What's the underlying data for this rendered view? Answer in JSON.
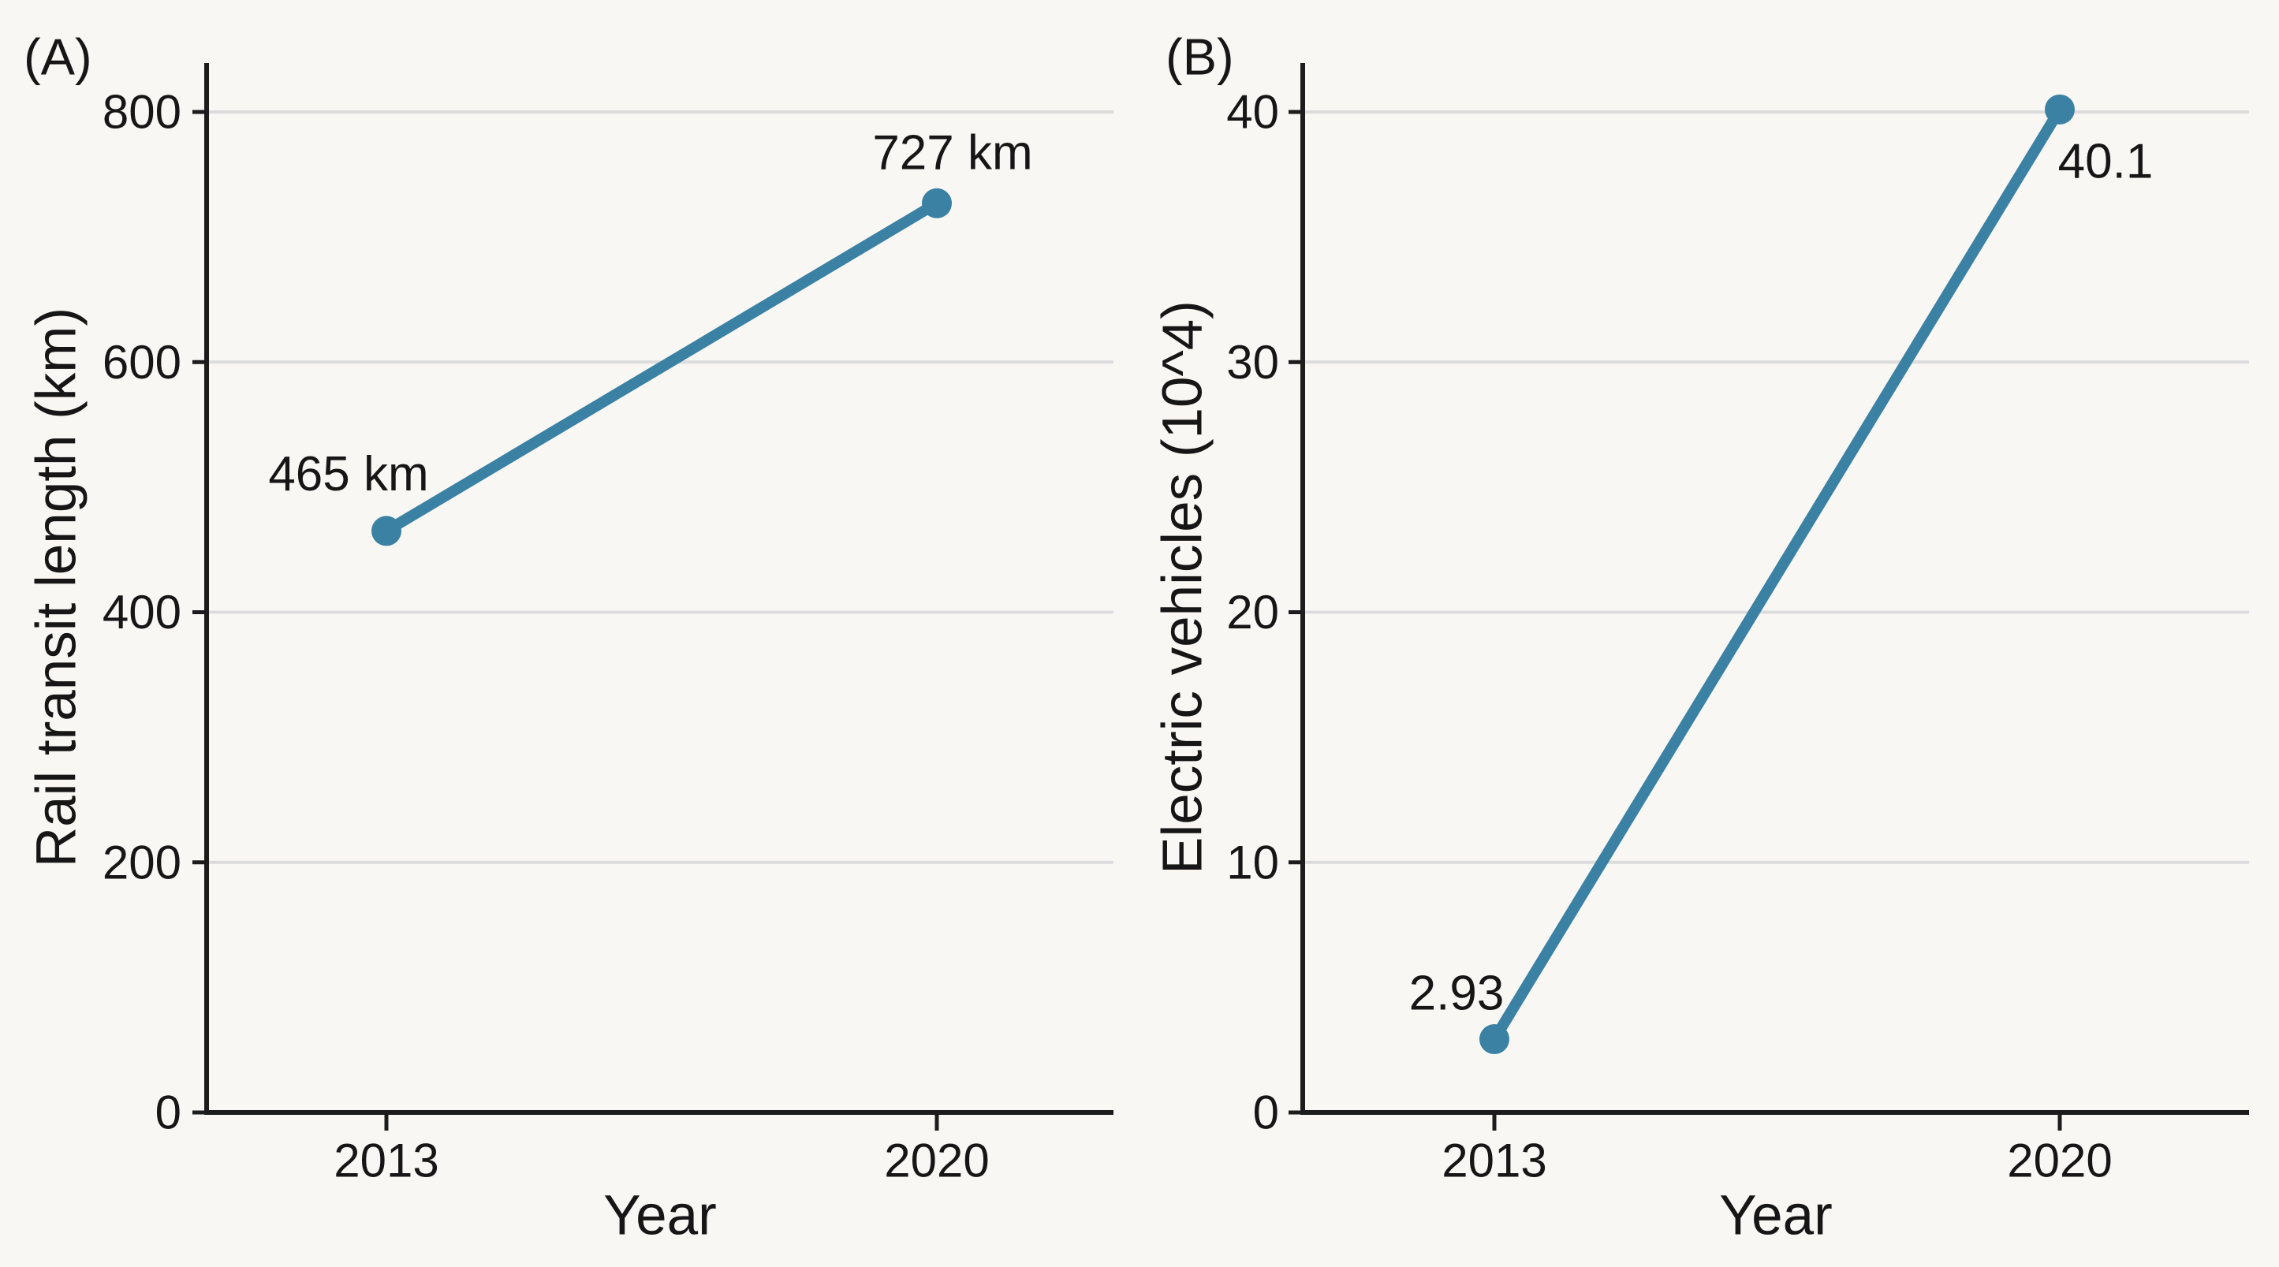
{
  "figure": {
    "background": "#f8f7f4",
    "text_color": "#161616",
    "grid_color": "#dcdcdc",
    "axis_color": "#1c1c1c",
    "accent_color": "#3b81a4"
  },
  "chart_data": [
    {
      "id": "A",
      "panel_label": "(A)",
      "type": "line",
      "x": [
        "2013",
        "2020"
      ],
      "values": [
        465,
        727
      ],
      "point_labels": [
        "465 km",
        "727 km"
      ],
      "xlabel": "Year",
      "ylabel": "Rail transit length (km)",
      "ylim": [
        0,
        800
      ],
      "yticks": [
        0,
        200,
        400,
        600,
        800
      ],
      "grid": true,
      "legend": "none",
      "line_color": "#3b81a4"
    },
    {
      "id": "B",
      "panel_label": "(B)",
      "type": "line",
      "x": [
        "2013",
        "2020"
      ],
      "values": [
        2.93,
        40.1
      ],
      "point_labels": [
        "2.93",
        "40.1"
      ],
      "xlabel": "Year",
      "ylabel": "Electric vehicles (10^4)",
      "ylim": [
        0,
        40
      ],
      "yticks": [
        0,
        10,
        20,
        30,
        40
      ],
      "grid": true,
      "legend": "none",
      "line_color": "#3b81a4"
    }
  ]
}
